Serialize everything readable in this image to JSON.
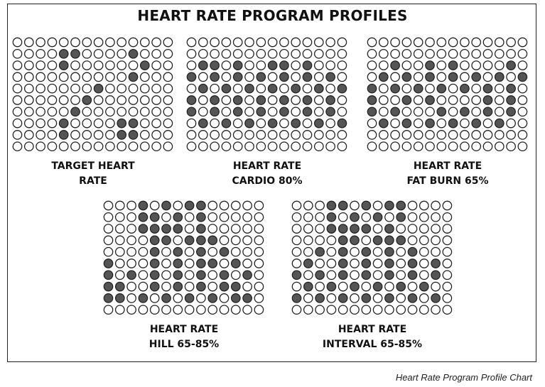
{
  "title": "HEART RATE PROGRAM PROFILES",
  "caption": "Heart Rate Program Profile Chart",
  "colors": {
    "filled": "#555555",
    "empty": "#ffffff",
    "stroke": "#222222"
  },
  "profiles": [
    {
      "label_line1": "TARGET HEART",
      "label_line2": "RATE",
      "rows": [
        "..............",
        "....##....#...",
        "....#......#..",
        "..........#...",
        ".......#......",
        "......#.......",
        ".....#........",
        "....#....##...",
        "....#....##...",
        ".............."
      ]
    },
    {
      "label_line1": "HEART RATE",
      "label_line2": "CARDIO 80%",
      "rows": [
        "..............",
        "..............",
        ".##.#..##.#...",
        "#.#.#.#.#.#.#.",
        ".#.#.#.#.#.#.#",
        "#.#.#.#.#.#.#.",
        "#.#.#.#.#.#.#.",
        ".#.#.#.#.#.#.#",
        "..............",
        ".............."
      ]
    },
    {
      "label_line1": "HEART RATE",
      "label_line2": "FAT BURN 65%",
      "rows": [
        "..............",
        "..............",
        "..#..#.#....#.",
        ".#.#.#.#.#.#.#",
        "#.#.#.#.#.#.#.",
        "#..#.#....#.#.",
        "#.#...#.#.#.#.",
        ".#.#.#.#.#.#..",
        "..............",
        ".............."
      ]
    },
    {
      "label_line1": "HEART RATE",
      "label_line2": "HILL 65-85%",
      "rows": [
        "...#.#.##.....",
        "...##.#.#.....",
        "...####.#.....",
        "....##.###....",
        "....#.#.#.#...",
        "#...#.#.##.#..",
        "#.#.#.#.#.#.#.",
        "##..#.#.#.##..",
        "##.#.#.#.#.##.",
        ".............."
      ]
    },
    {
      "label_line1": "HEART RATE",
      "label_line2": "INTERVAL 65-85%",
      "rows": [
        "...##.#.##....",
        "...#.#.#.#....",
        "...####.#.....",
        "....##.###....",
        "..#.#.#.#.#...",
        ".#..#.#.#.#.#.",
        "#.#.#.#.#.#.#.",
        ".#.#.#.#.#.#..",
        "#.#.#.#.#.#.#.",
        ".............."
      ]
    }
  ]
}
